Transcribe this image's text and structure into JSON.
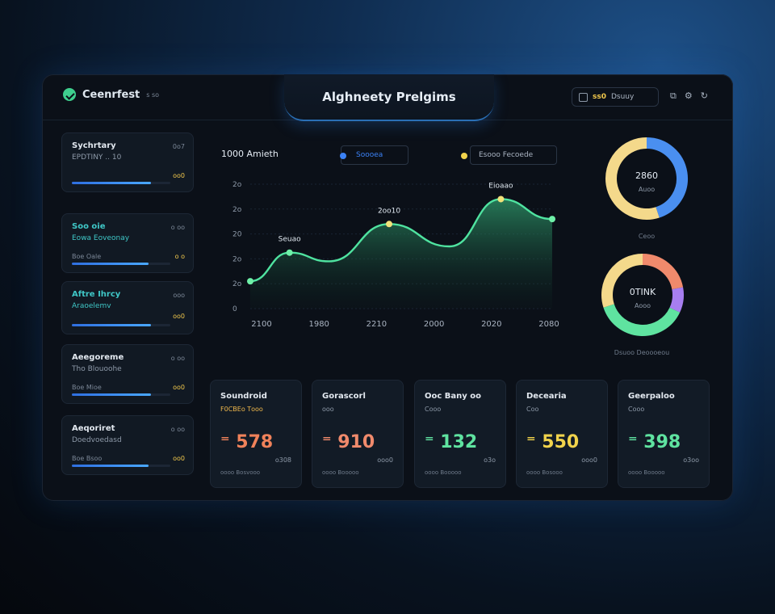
{
  "header": {
    "brand": "Ceenrfest",
    "brand_sub": "ꜱ ꜱᴏ",
    "title": "Alghneety Prelgims",
    "pill_num": "ꜱꜱ0",
    "pill_text": "Dsuuy",
    "icons": [
      "calendar-icon",
      "copy-icon",
      "gear-icon",
      "refresh-icon"
    ]
  },
  "sidebar": [
    {
      "title": "Sychrtary",
      "sub": "EPDTINY .. 10",
      "badge": "0ᴏ7",
      "foot": "",
      "value": "ᴏᴏ0",
      "progress": 0.8,
      "accent": "white"
    },
    {
      "title": "Soo oie",
      "sub": "Eowa Eoveonay",
      "badge": "ᴏ ᴏᴏ",
      "foot": "Boe Oale",
      "value": "ᴏ ᴏ",
      "progress": 0.78,
      "accent": "teal"
    },
    {
      "title": "Aftre Ihrcy",
      "sub": "Araoelemv",
      "badge": "ᴏᴏᴏ",
      "foot": "",
      "value": "ᴏᴏ0",
      "progress": 0.8,
      "accent": "teal"
    },
    {
      "title": "Aeegoreme",
      "sub": "Tho Blouoohe",
      "badge": "ᴏ ᴏᴏ",
      "foot": "Boe Mioe",
      "value": "ᴏᴏ0",
      "progress": 0.8,
      "accent": "white"
    },
    {
      "title": "Aeqoriret",
      "sub": "Doedvoedasd",
      "badge": "ᴏ ᴏᴏ",
      "foot": "Boe Bsoo",
      "value": "ᴏᴏ0",
      "progress": 0.78,
      "accent": "white"
    }
  ],
  "chart_header": "1000 Amieth",
  "legend": [
    {
      "label": "Soooea",
      "color": "#3b82f6"
    },
    {
      "label": "Esooo  Fecoede",
      "color": "#f1d34c"
    }
  ],
  "chart_data": {
    "type": "area",
    "x": [
      "2100",
      "1980",
      "2210",
      "2000",
      "2020",
      "2080"
    ],
    "y_ticks": [
      "0",
      "2ᴏ",
      "2ᴏ",
      "20",
      "2ᴏ",
      "2ᴏ"
    ],
    "annotations": [
      {
        "label": "Seuao",
        "point": 1
      },
      {
        "label": "2ᴏᴏ10",
        "point": 3
      },
      {
        "label": "Eioaao",
        "point": 5
      }
    ],
    "points": [
      {
        "x": 0.0,
        "y": 0.22
      },
      {
        "x": 0.13,
        "y": 0.45
      },
      {
        "x": 0.26,
        "y": 0.38
      },
      {
        "x": 0.46,
        "y": 0.68
      },
      {
        "x": 0.66,
        "y": 0.5
      },
      {
        "x": 0.83,
        "y": 0.88
      },
      {
        "x": 1.0,
        "y": 0.72
      }
    ],
    "highlight_points": [
      0,
      1,
      3,
      5,
      6
    ],
    "colors": {
      "line": "#4fe3a0",
      "dot_green": "#6ff0a8",
      "dot_yellow": "#f1e27a"
    }
  },
  "donuts": [
    {
      "center": "2860",
      "sub": "Auoo",
      "caption": "Ceoo",
      "slices": [
        {
          "v": 45,
          "c": "#4a8ff0"
        },
        {
          "v": 55,
          "c": "#f4d98b"
        }
      ]
    },
    {
      "center": "0TINK",
      "sub": "Aooo",
      "caption": "Dsuoo Deoooeou",
      "slices": [
        {
          "v": 22,
          "c": "#f08a6c"
        },
        {
          "v": 10,
          "c": "#a77ef0"
        },
        {
          "v": 38,
          "c": "#5fe3a0"
        },
        {
          "v": 30,
          "c": "#f4d98b"
        }
      ]
    }
  ],
  "metrics": [
    {
      "title": "Soundroid",
      "sub": "F0CBEᴏ Tᴏᴏᴏ",
      "value": "578",
      "change": "ᴏ308",
      "foot": "ᴏᴏᴏᴏ Bosvᴏᴏᴏ",
      "color": "#f0825a",
      "sub_color": "#f1b94c"
    },
    {
      "title": "Gorascorl",
      "sub": "ᴏᴏᴏ",
      "value": "910",
      "change": "ᴏᴏᴏ0",
      "foot": "ᴏᴏᴏᴏ Boᴏᴏᴏᴏ",
      "color": "#f08a6c",
      "sub_color": "#8d99a8"
    },
    {
      "title": "Ooc Bany ᴏᴏ",
      "sub": "Cᴏᴏᴏ",
      "value": "132",
      "change": "ᴏ3ᴏ",
      "foot": "ᴏᴏᴏᴏ Booᴏᴏᴏ",
      "color": "#5fe3a0",
      "sub_color": "#8d99a8"
    },
    {
      "title": "Decearia",
      "sub": "Cᴏᴏ",
      "value": "550",
      "change": "ᴏᴏᴏ0",
      "foot": "ᴏᴏᴏᴏ Bosᴏᴏᴏ",
      "color": "#f1d34c",
      "sub_color": "#8d99a8"
    },
    {
      "title": "Geerpaloᴏ",
      "sub": "Cᴏᴏᴏ",
      "value": "398",
      "change": "ᴏ3ᴏᴏ",
      "foot": "ᴏᴏᴏᴏ Boᴏᴏᴏᴏ",
      "color": "#5fe3a0",
      "sub_color": "#8d99a8"
    }
  ]
}
